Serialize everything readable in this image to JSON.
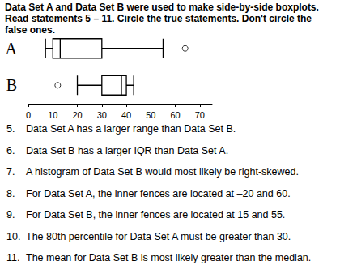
{
  "instructions": "Data Set A and Data Set B were used to make side-by-side boxplots. Read statements 5 – 11. Circle the true statements. Don't circle the false ones.",
  "chart_data": {
    "type": "boxplot",
    "orientation": "horizontal",
    "color": "#000000",
    "categories": [
      "A",
      "B"
    ],
    "boxes": [
      {
        "min": 7,
        "q1": 10,
        "median": 13,
        "q3": 30,
        "max": 55,
        "outliers": [
          64
        ]
      },
      {
        "min": 20,
        "q1": 30,
        "median": 38,
        "q3": 40,
        "max": 43,
        "outliers": [
          12
        ]
      }
    ],
    "xlim": [
      0,
      75
    ],
    "xticks": [
      0,
      10,
      20,
      30,
      40,
      50,
      60,
      70
    ],
    "grid": false
  },
  "statements": [
    {
      "label": "5.",
      "text": "Data Set A has a larger range than Data Set B."
    },
    {
      "label": "6.",
      "text": "Data Set B has a larger IQR than Data Set A."
    },
    {
      "label": "7.",
      "text": "A histogram of Data Set B would most likely be right-skewed."
    },
    {
      "label": "8.",
      "text": "For Data Set A, the inner fences are located at –20 and 60."
    },
    {
      "label": "9.",
      "text": "For Data Set B, the inner fences are located at 15 and 55."
    },
    {
      "label": "10.",
      "text": "The 80th percentile for Data Set A must be greater than 30."
    },
    {
      "label": "11.",
      "text": "The mean for Data Set B is most likely greater than the median."
    }
  ]
}
